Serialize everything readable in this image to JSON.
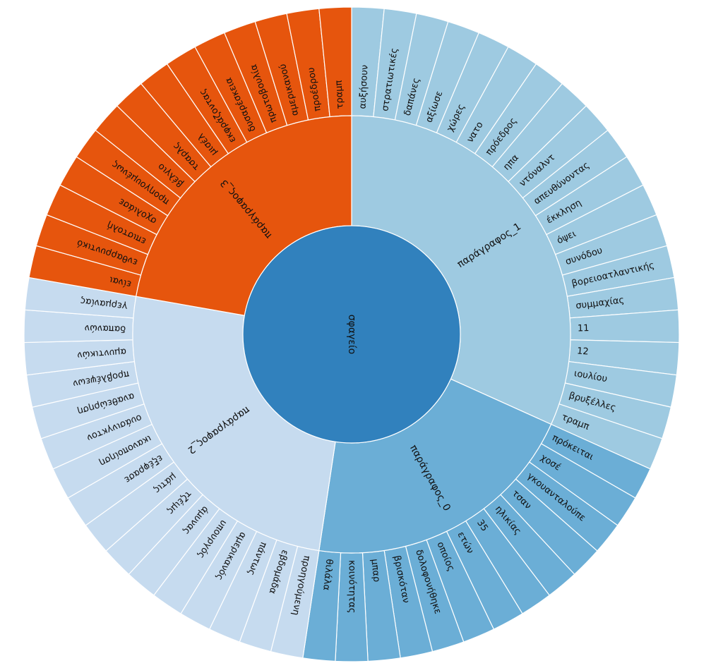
{
  "chart_data": {
    "type": "sunburst",
    "root": {
      "label": "σφαγείο",
      "color": "#3181bd"
    },
    "groups": [
      {
        "label": "παράγραφος_1",
        "color": "#9ecae1",
        "leaves": [
          "αυξήσουν",
          "στρατιωτικές",
          "δαπάνες",
          "αξίωσε",
          "χώρες",
          "νατο",
          "πρόεδρος",
          "ηπα",
          "ντόναλντ",
          "απευθύνοντας",
          "έκκληση",
          "όψει",
          "συνόδου",
          "βορειοατλαντικής",
          "συμμαχίας",
          "11",
          "12",
          "ιουλίου",
          "βρυξέλλες",
          "τραμπ"
        ]
      },
      {
        "label": "παράγραφος_0",
        "color": "#6baed6",
        "leaves": [
          "πρόκειται",
          "χοσέ",
          "γκουανταλούπε",
          "τσαν",
          "ηλικίας",
          "35",
          "ετών",
          "οποίος",
          "δολοφονήθηκε",
          "βρισκόταν",
          "μπαρ",
          "κοινότητας",
          "θιλάλα"
        ]
      },
      {
        "label": "παράγραφος_2",
        "color": "#c6dbef",
        "leaves": [
          "προηγούμενη",
          "εβδομάδα",
          "πάντως",
          "αμερικανός",
          "υπουργός",
          "άμυνας",
          "τζέιμς",
          "μάτις",
          "εξέφρασε",
          "ικανοποίηση",
          "ουάσινγκτον",
          "αναθεώρηση",
          "προβλέψεων",
          "αμυντικών",
          "δαπανών",
          "γερμανίας"
        ]
      },
      {
        "label": "παράγραφος_3",
        "color": "#e6550d",
        "leaves": [
          "είναι",
          "ενθαρρυντικό",
          "επιστολή",
          "σχολιάσε",
          "προηγουμένως",
          "βέλγιο",
          "τσαρλς",
          "μισέλ",
          "εκφράζοντας",
          "δυσαρέσκεια",
          "πρωτοβουλία",
          "αμερικανού",
          "προέδρου",
          "τραμπ"
        ]
      }
    ]
  }
}
